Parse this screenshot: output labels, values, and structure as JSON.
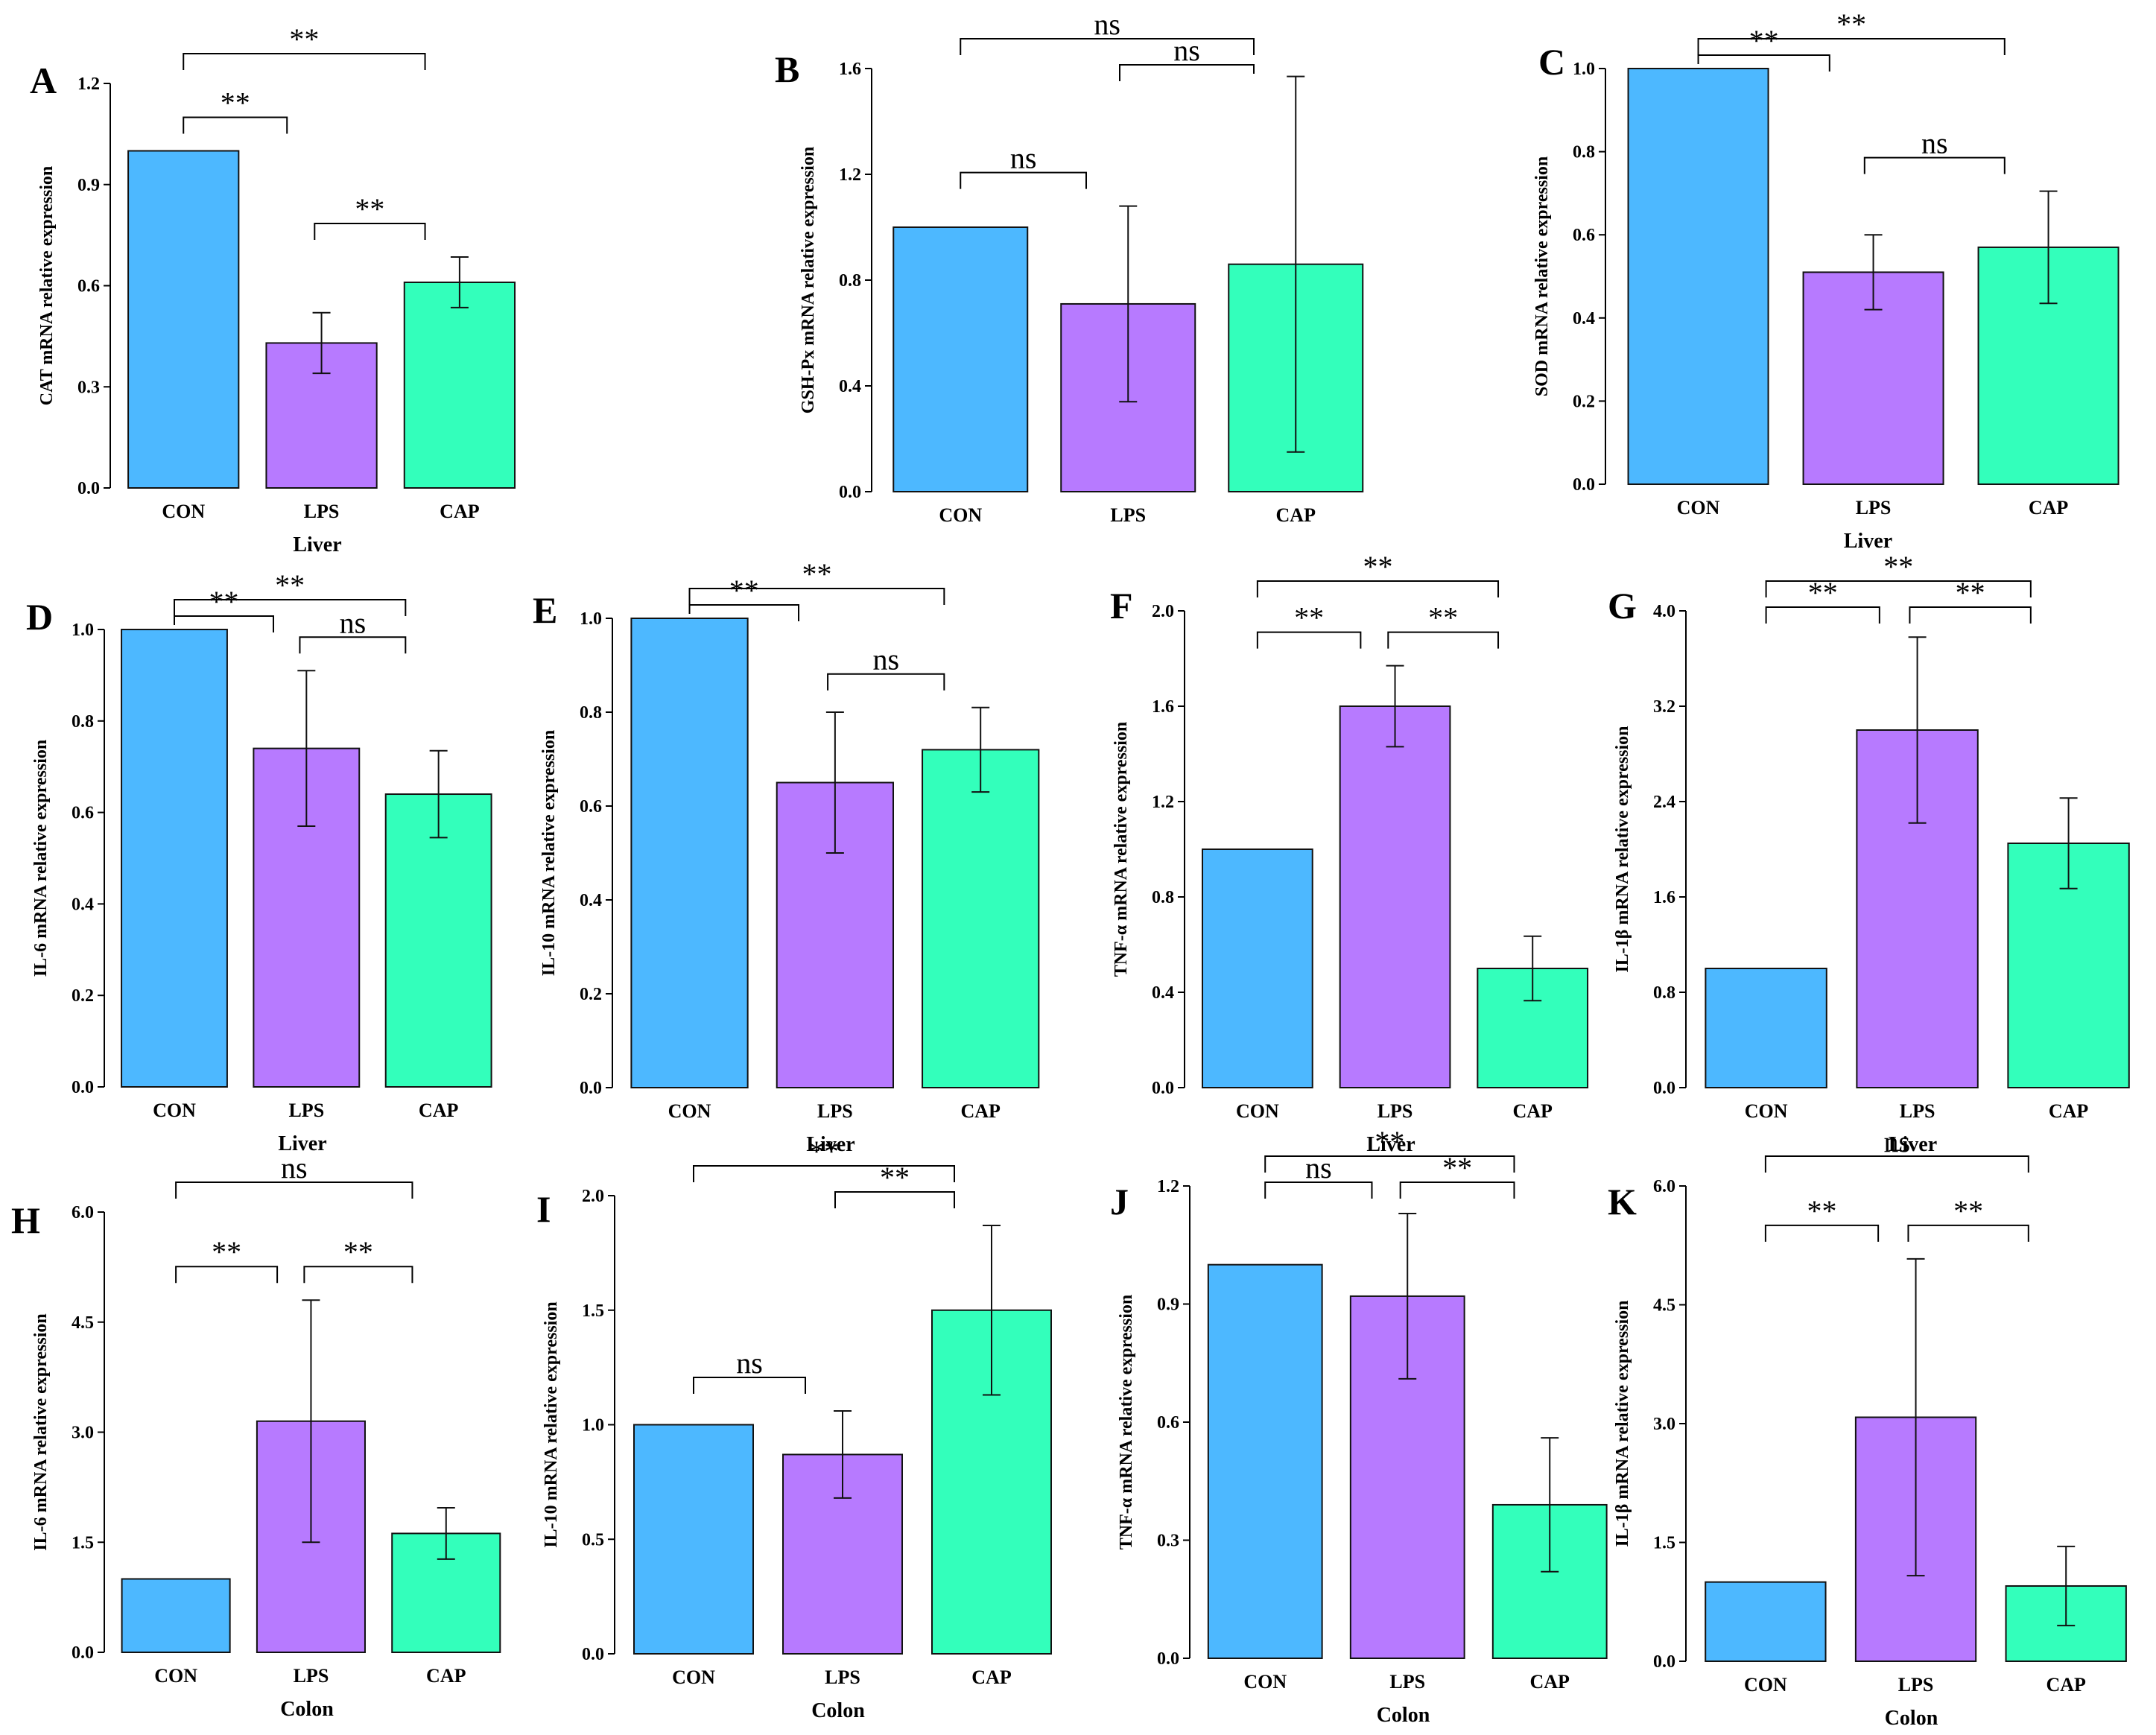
{
  "colors": {
    "CON": "#4db8ff",
    "LPS": "#b77aff",
    "CAP": "#33ffbb"
  },
  "chart_data": [
    {
      "panel": "A",
      "type": "bar",
      "ylabel": "CAT mRNA relative expression",
      "xlabel": "Liver",
      "yticks": [
        "0.0",
        "0.3",
        "0.6",
        "0.9",
        "1.2"
      ],
      "ylim": [
        0,
        1.2
      ],
      "categories": [
        "CON",
        "LPS",
        "CAP"
      ],
      "values": [
        1.0,
        0.43,
        0.61
      ],
      "errors": [
        0,
        0.09,
        0.075
      ],
      "brackets": [
        {
          "from": 0,
          "to": 1,
          "label": "**",
          "level": 1
        },
        {
          "from": 0,
          "to": 2,
          "label": "**",
          "level": 2
        },
        {
          "from": 1,
          "to": 2,
          "label": "**",
          "level": 0
        }
      ]
    },
    {
      "panel": "B",
      "type": "bar",
      "ylabel": "GSH-Px mRNA relative expression",
      "xlabel": "",
      "yticks": [
        "0.0",
        "0.4",
        "0.8",
        "1.2",
        "1.6"
      ],
      "ylim": [
        0,
        1.6
      ],
      "categories": [
        "CON",
        "LPS",
        "CAP"
      ],
      "values": [
        1.0,
        0.71,
        0.86
      ],
      "errors": [
        0,
        0.37,
        0.71
      ],
      "brackets": [
        {
          "from": 0,
          "to": 1,
          "label": "ns",
          "level": 1
        },
        {
          "from": 0,
          "to": 2,
          "label": "ns",
          "level": 2
        },
        {
          "from": 1,
          "to": 2,
          "label": "ns",
          "level": 0
        }
      ]
    },
    {
      "panel": "C",
      "type": "bar",
      "ylabel": "SOD mRNA relative expression",
      "xlabel": "Liver",
      "yticks": [
        "0.0",
        "0.2",
        "0.4",
        "0.6",
        "0.8",
        "1.0"
      ],
      "ylim": [
        0,
        1.0
      ],
      "categories": [
        "CON",
        "LPS",
        "CAP"
      ],
      "values": [
        1.0,
        0.51,
        0.57
      ],
      "errors": [
        0,
        0.09,
        0.135
      ],
      "brackets": [
        {
          "from": 0,
          "to": 1,
          "label": "**",
          "level": 1
        },
        {
          "from": 0,
          "to": 2,
          "label": "**",
          "level": 2
        },
        {
          "from": 1,
          "to": 2,
          "label": "ns",
          "level": 0
        }
      ]
    },
    {
      "panel": "D",
      "type": "bar",
      "ylabel": "IL-6 mRNA relative expression",
      "xlabel": "Liver",
      "yticks": [
        "0.0",
        "0.2",
        "0.4",
        "0.6",
        "0.8",
        "1.0"
      ],
      "ylim": [
        0,
        1.0
      ],
      "categories": [
        "CON",
        "LPS",
        "CAP"
      ],
      "values": [
        1.0,
        0.74,
        0.64
      ],
      "errors": [
        0,
        0.17,
        0.095
      ],
      "brackets": [
        {
          "from": 0,
          "to": 1,
          "label": "**",
          "level": 1
        },
        {
          "from": 0,
          "to": 2,
          "label": "**",
          "level": 2
        },
        {
          "from": 1,
          "to": 2,
          "label": "ns",
          "level": 0
        }
      ]
    },
    {
      "panel": "E",
      "type": "bar",
      "ylabel": "IL-10 mRNA relative expression",
      "xlabel": "Liver",
      "yticks": [
        "0.0",
        "0.2",
        "0.4",
        "0.6",
        "0.8",
        "1.0"
      ],
      "ylim": [
        0,
        1.0
      ],
      "categories": [
        "CON",
        "LPS",
        "CAP"
      ],
      "values": [
        1.0,
        0.65,
        0.72
      ],
      "errors": [
        0,
        0.15,
        0.09
      ],
      "brackets": [
        {
          "from": 0,
          "to": 1,
          "label": "**",
          "level": 1
        },
        {
          "from": 0,
          "to": 2,
          "label": "**",
          "level": 2
        },
        {
          "from": 1,
          "to": 2,
          "label": "ns",
          "level": 0
        }
      ]
    },
    {
      "panel": "F",
      "type": "bar",
      "ylabel": "TNF-α mRNA relative expression",
      "xlabel": "Liver",
      "yticks": [
        "0.0",
        "0.4",
        "0.8",
        "1.2",
        "1.6",
        "2.0"
      ],
      "ylim": [
        0,
        2.0
      ],
      "categories": [
        "CON",
        "LPS",
        "CAP"
      ],
      "values": [
        1.0,
        1.6,
        0.5
      ],
      "errors": [
        0,
        0.17,
        0.135
      ],
      "brackets": [
        {
          "from": 0,
          "to": 1,
          "label": "**",
          "level": 1
        },
        {
          "from": 0,
          "to": 2,
          "label": "**",
          "level": 2
        },
        {
          "from": 1,
          "to": 2,
          "label": "**",
          "level": 1
        }
      ]
    },
    {
      "panel": "G",
      "type": "bar",
      "ylabel": "IL-1β mRNA relative expression",
      "xlabel": "Liver",
      "yticks": [
        "0.0",
        "0.8",
        "1.6",
        "2.4",
        "3.2",
        "4.0"
      ],
      "ylim": [
        0,
        4.0
      ],
      "categories": [
        "CON",
        "LPS",
        "CAP"
      ],
      "values": [
        1.0,
        3.0,
        2.05
      ],
      "errors": [
        0,
        0.78,
        0.38
      ],
      "brackets": [
        {
          "from": 0,
          "to": 1,
          "label": "**",
          "level": 1
        },
        {
          "from": 0,
          "to": 2,
          "label": "**",
          "level": 2
        },
        {
          "from": 1,
          "to": 2,
          "label": "**",
          "level": 1
        }
      ]
    },
    {
      "panel": "H",
      "type": "bar",
      "ylabel": "IL-6 mRNA relative expression",
      "xlabel": "Colon",
      "yticks": [
        "0.0",
        "1.5",
        "3.0",
        "4.5",
        "6.0"
      ],
      "ylim": [
        0,
        6.0
      ],
      "categories": [
        "CON",
        "LPS",
        "CAP"
      ],
      "values": [
        1.0,
        3.15,
        1.62
      ],
      "errors": [
        0,
        1.65,
        0.35
      ],
      "brackets": [
        {
          "from": 0,
          "to": 1,
          "label": "**",
          "level": 1
        },
        {
          "from": 0,
          "to": 2,
          "label": "ns",
          "level": 2
        },
        {
          "from": 1,
          "to": 2,
          "label": "**",
          "level": 1
        }
      ]
    },
    {
      "panel": "I",
      "type": "bar",
      "ylabel": "IL-10 mRNA relative expression",
      "xlabel": "Colon",
      "yticks": [
        "0.0",
        "0.5",
        "1.0",
        "1.5",
        "2.0"
      ],
      "ylim": [
        0,
        2.0
      ],
      "categories": [
        "CON",
        "LPS",
        "CAP"
      ],
      "values": [
        1.0,
        0.87,
        1.5
      ],
      "errors": [
        0,
        0.19,
        0.37
      ],
      "brackets": [
        {
          "from": 0,
          "to": 1,
          "label": "ns",
          "level": 0
        },
        {
          "from": 0,
          "to": 2,
          "label": "**",
          "level": 2
        },
        {
          "from": 1,
          "to": 2,
          "label": "**",
          "level": 1
        }
      ]
    },
    {
      "panel": "J",
      "type": "bar",
      "ylabel": "TNF-α mRNA relative expression",
      "xlabel": "Colon",
      "yticks": [
        "0.0",
        "0.3",
        "0.6",
        "0.9",
        "1.2"
      ],
      "ylim": [
        0,
        1.2
      ],
      "categories": [
        "CON",
        "LPS",
        "CAP"
      ],
      "values": [
        1.0,
        0.92,
        0.39
      ],
      "errors": [
        0,
        0.21,
        0.17
      ],
      "brackets": [
        {
          "from": 0,
          "to": 1,
          "label": "ns",
          "level": 1
        },
        {
          "from": 0,
          "to": 2,
          "label": "**",
          "level": 2
        },
        {
          "from": 1,
          "to": 2,
          "label": "**",
          "level": 1
        }
      ]
    },
    {
      "panel": "K",
      "type": "bar",
      "ylabel": "IL-1β mRNA relative expression",
      "xlabel": "Colon",
      "yticks": [
        "0.0",
        "1.5",
        "3.0",
        "4.5",
        "6.0"
      ],
      "ylim": [
        0,
        6.0
      ],
      "categories": [
        "CON",
        "LPS",
        "CAP"
      ],
      "values": [
        1.0,
        3.08,
        0.95
      ],
      "errors": [
        0,
        2.0,
        0.5
      ],
      "brackets": [
        {
          "from": 0,
          "to": 1,
          "label": "**",
          "level": 1
        },
        {
          "from": 0,
          "to": 2,
          "label": "ns",
          "level": 2
        },
        {
          "from": 1,
          "to": 2,
          "label": "**",
          "level": 1
        }
      ]
    }
  ]
}
